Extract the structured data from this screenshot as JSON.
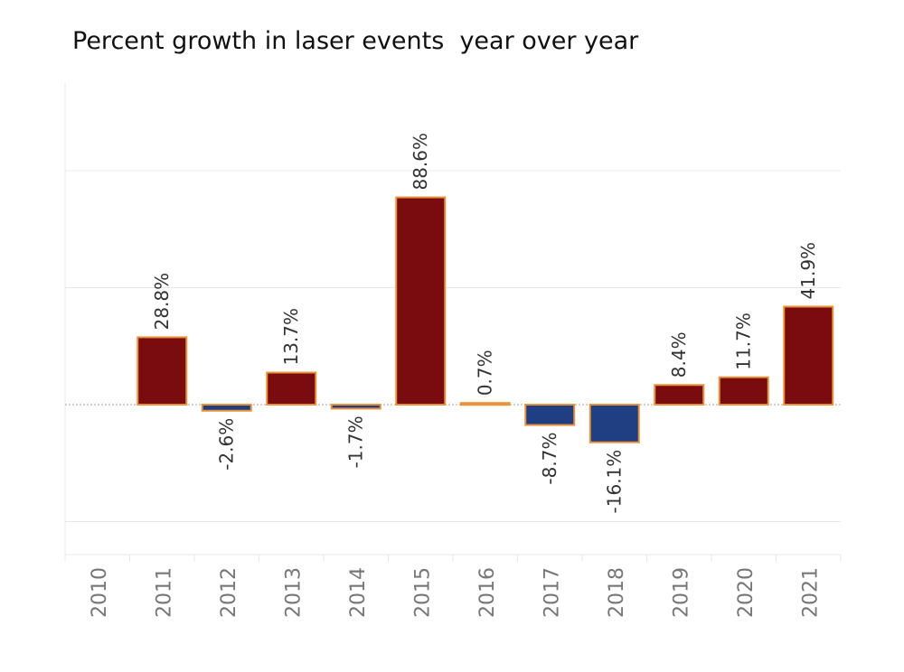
{
  "chart_data": {
    "type": "bar",
    "title": "Percent growth in laser events  year over year",
    "xlabel": "",
    "ylabel": "",
    "categories": [
      "2010",
      "2011",
      "2012",
      "2013",
      "2014",
      "2015",
      "2016",
      "2017",
      "2018",
      "2019",
      "2020",
      "2021"
    ],
    "values": [
      null,
      28.8,
      -2.6,
      13.7,
      -1.7,
      88.6,
      0.7,
      -8.7,
      -16.1,
      8.4,
      11.7,
      41.9
    ],
    "value_labels": [
      "",
      "28.8%",
      "-2.6%",
      "13.7%",
      "-1.7%",
      "88.6%",
      "0.7%",
      "-8.7%",
      "-16.1%",
      "8.4%",
      "11.7%",
      "41.9%"
    ],
    "ylim": [
      -64,
      137
    ],
    "gridlines": [
      -50,
      50,
      100
    ],
    "grid": true,
    "legend": "none",
    "colors": {
      "positive": "#7a0c10",
      "negative": "#1f3f82",
      "outline": "#e8923a",
      "zeroline": "#aaaaaa",
      "grid": "#e8e8e8"
    }
  }
}
